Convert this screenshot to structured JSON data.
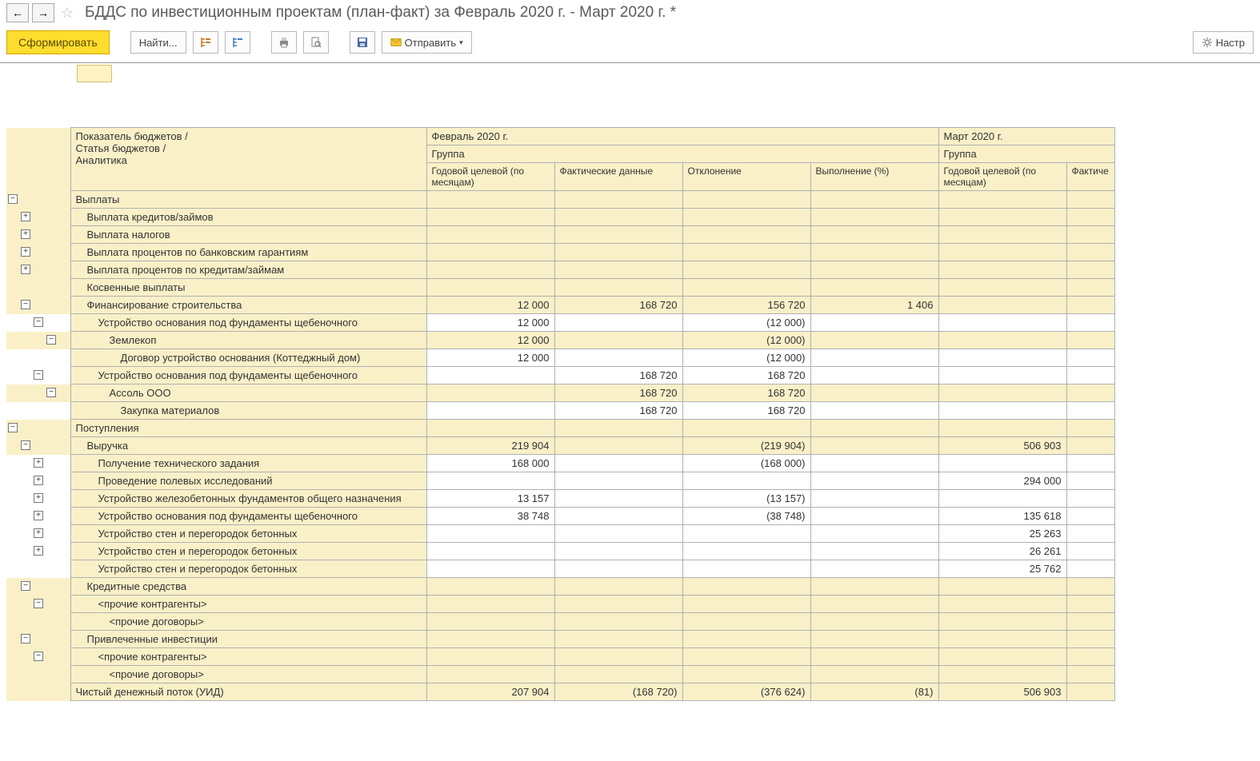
{
  "title": "БДДС по инвестиционным проектам (план-факт)  за Февраль 2020 г. - Март 2020 г. *",
  "toolbar": {
    "generate": "Сформировать",
    "find": "Найти...",
    "send": "Отправить",
    "settings": "Настр"
  },
  "columns": {
    "indicator_header_l1": "Показатель бюджетов /",
    "indicator_header_l2": "Статья бюджетов /",
    "indicator_header_l3": "Аналитика",
    "period1": "Февраль 2020 г.",
    "period2": "Март 2020 г.",
    "group": "Группа",
    "col_plan": "Годовой целевой (по месяцам)",
    "col_fact": "Фактические данные",
    "col_dev": "Отклонение",
    "col_pct": "Выполнение (%)",
    "col_plan2": "Годовой целевой (по месяцам)",
    "col_fact2": "Фактиче"
  },
  "widths": {
    "tree_col": 16,
    "label_col": 445,
    "num_col": 160,
    "num_col_narrow": 60
  },
  "colors": {
    "header_bg": "#faf0c8",
    "border": "#b0b0b0",
    "primary_btn": "#ffdd2d"
  },
  "rows": [
    {
      "lvl": 0,
      "expand": "-",
      "label": "Выплаты",
      "p": "",
      "f": "",
      "d": "",
      "pc": "",
      "p2": "",
      "hdr": true
    },
    {
      "lvl": 1,
      "expand": "+",
      "label": "Выплата кредитов/займов",
      "p": "",
      "f": "",
      "d": "",
      "pc": "",
      "p2": "",
      "hdr": true
    },
    {
      "lvl": 1,
      "expand": "+",
      "label": "Выплата налогов",
      "p": "",
      "f": "",
      "d": "",
      "pc": "",
      "p2": "",
      "hdr": true
    },
    {
      "lvl": 1,
      "expand": "+",
      "label": "Выплата процентов по банковским гарантиям",
      "p": "",
      "f": "",
      "d": "",
      "pc": "",
      "p2": "",
      "hdr": true
    },
    {
      "lvl": 1,
      "expand": "+",
      "label": "Выплата процентов по кредитам/займам",
      "p": "",
      "f": "",
      "d": "",
      "pc": "",
      "p2": "",
      "hdr": true
    },
    {
      "lvl": 1,
      "expand": "",
      "label": "Косвенные выплаты",
      "p": "",
      "f": "",
      "d": "",
      "pc": "",
      "p2": "",
      "hdr": true
    },
    {
      "lvl": 1,
      "expand": "-",
      "label": "Финансирование строительства",
      "p": "12 000",
      "f": "168 720",
      "d": "156 720",
      "pc": "1 406",
      "p2": "",
      "hdr": true
    },
    {
      "lvl": 2,
      "expand": "-",
      "label": "Устройство основания под фундаменты щебеночного",
      "p": "12 000",
      "f": "",
      "d": "(12 000)",
      "pc": "",
      "p2": ""
    },
    {
      "lvl": 3,
      "expand": "-",
      "label": "Землекоп",
      "p": "12 000",
      "f": "",
      "d": "(12 000)",
      "pc": "",
      "p2": "",
      "hdr": true
    },
    {
      "lvl": 4,
      "expand": "",
      "label": "Договор устройство основания (Коттеджный дом)",
      "p": "12 000",
      "f": "",
      "d": "(12 000)",
      "pc": "",
      "p2": ""
    },
    {
      "lvl": 2,
      "expand": "-",
      "label": "Устройство основания под фундаменты щебеночного",
      "p": "",
      "f": "168 720",
      "d": "168 720",
      "pc": "",
      "p2": ""
    },
    {
      "lvl": 3,
      "expand": "-",
      "label": "Ассоль ООО",
      "p": "",
      "f": "168 720",
      "d": "168 720",
      "pc": "",
      "p2": "",
      "hdr": true
    },
    {
      "lvl": 4,
      "expand": "",
      "label": "Закупка материалов",
      "p": "",
      "f": "168 720",
      "d": "168 720",
      "pc": "",
      "p2": ""
    },
    {
      "lvl": 0,
      "expand": "-",
      "label": "Поступления",
      "p": "",
      "f": "",
      "d": "",
      "pc": "",
      "p2": "",
      "hdr": true
    },
    {
      "lvl": 1,
      "expand": "-",
      "label": "Выручка",
      "p": "219 904",
      "f": "",
      "d": "(219 904)",
      "pc": "",
      "p2": "506 903",
      "hdr": true
    },
    {
      "lvl": 2,
      "expand": "+",
      "label": "Получение технического задания",
      "p": "168 000",
      "f": "",
      "d": "(168 000)",
      "pc": "",
      "p2": ""
    },
    {
      "lvl": 2,
      "expand": "+",
      "label": "Проведение полевых исследований",
      "p": "",
      "f": "",
      "d": "",
      "pc": "",
      "p2": "294 000"
    },
    {
      "lvl": 2,
      "expand": "+",
      "label": "Устройство железобетонных фундаментов общего назначения",
      "p": "13 157",
      "f": "",
      "d": "(13 157)",
      "pc": "",
      "p2": ""
    },
    {
      "lvl": 2,
      "expand": "+",
      "label": "Устройство основания под фундаменты щебеночного",
      "p": "38 748",
      "f": "",
      "d": "(38 748)",
      "pc": "",
      "p2": "135 618"
    },
    {
      "lvl": 2,
      "expand": "+",
      "label": "Устройство стен и перегородок бетонных",
      "p": "",
      "f": "",
      "d": "",
      "pc": "",
      "p2": "25 263"
    },
    {
      "lvl": 2,
      "expand": "+",
      "label": "Устройство стен и перегородок бетонных",
      "p": "",
      "f": "",
      "d": "",
      "pc": "",
      "p2": "26 261"
    },
    {
      "lvl": 2,
      "expand": "",
      "label": "Устройство стен и перегородок бетонных",
      "p": "",
      "f": "",
      "d": "",
      "pc": "",
      "p2": "25 762"
    },
    {
      "lvl": 1,
      "expand": "-",
      "label": "Кредитные средства",
      "p": "",
      "f": "",
      "d": "",
      "pc": "",
      "p2": "",
      "hdr": true
    },
    {
      "lvl": 2,
      "expand": "-",
      "label": "<прочие контрагенты>",
      "p": "",
      "f": "",
      "d": "",
      "pc": "",
      "p2": "",
      "hdr": true
    },
    {
      "lvl": 3,
      "expand": "",
      "label": "<прочие договоры>",
      "p": "",
      "f": "",
      "d": "",
      "pc": "",
      "p2": "",
      "hdr": true
    },
    {
      "lvl": 1,
      "expand": "-",
      "label": "Привлеченные инвестиции",
      "p": "",
      "f": "",
      "d": "",
      "pc": "",
      "p2": "",
      "hdr": true
    },
    {
      "lvl": 2,
      "expand": "-",
      "label": "<прочие контрагенты>",
      "p": "",
      "f": "",
      "d": "",
      "pc": "",
      "p2": "",
      "hdr": true
    },
    {
      "lvl": 3,
      "expand": "",
      "label": "<прочие договоры>",
      "p": "",
      "f": "",
      "d": "",
      "pc": "",
      "p2": "",
      "hdr": true
    },
    {
      "lvl": 0,
      "expand": "",
      "label": "Чистый денежный поток (УИД)",
      "p": "207 904",
      "f": "(168 720)",
      "d": "(376 624)",
      "pc": "(81)",
      "p2": "506 903",
      "hdr": true
    }
  ]
}
